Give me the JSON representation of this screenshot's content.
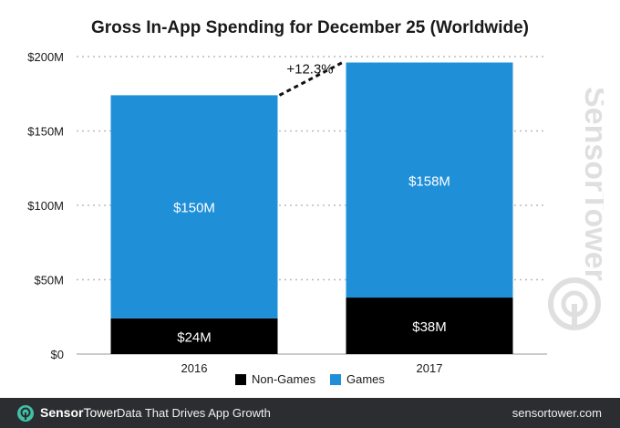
{
  "chart_data": {
    "type": "bar",
    "stacked": true,
    "title": "Gross In-App Spending for December 25 (Worldwide)",
    "categories": [
      "2016",
      "2017"
    ],
    "series": [
      {
        "name": "Non-Games",
        "values": [
          24,
          38
        ],
        "labels": [
          "$24M",
          "$38M"
        ],
        "color": "#000000"
      },
      {
        "name": "Games",
        "values": [
          150,
          158
        ],
        "labels": [
          "$150M",
          "$158M"
        ],
        "color": "#1f8fd8"
      }
    ],
    "ylim": [
      0,
      200
    ],
    "yticks": [
      0,
      50,
      100,
      150,
      200
    ],
    "ytick_labels": [
      "$0",
      "$50M",
      "$100M",
      "$150M",
      "$200M"
    ],
    "grid": true,
    "annotation": "+12.3%",
    "legend_position": "bottom"
  },
  "footer": {
    "brand_sensor": "Sensor",
    "brand_tower": "Tower",
    "tagline": "Data That Drives App Growth",
    "site": "sensortower.com"
  },
  "watermark_text": "SensorTower",
  "colors": {
    "games": "#1f8fd8",
    "non_games": "#000000",
    "footer_bg": "#2b2d30",
    "grid": "#bbbbbb"
  }
}
